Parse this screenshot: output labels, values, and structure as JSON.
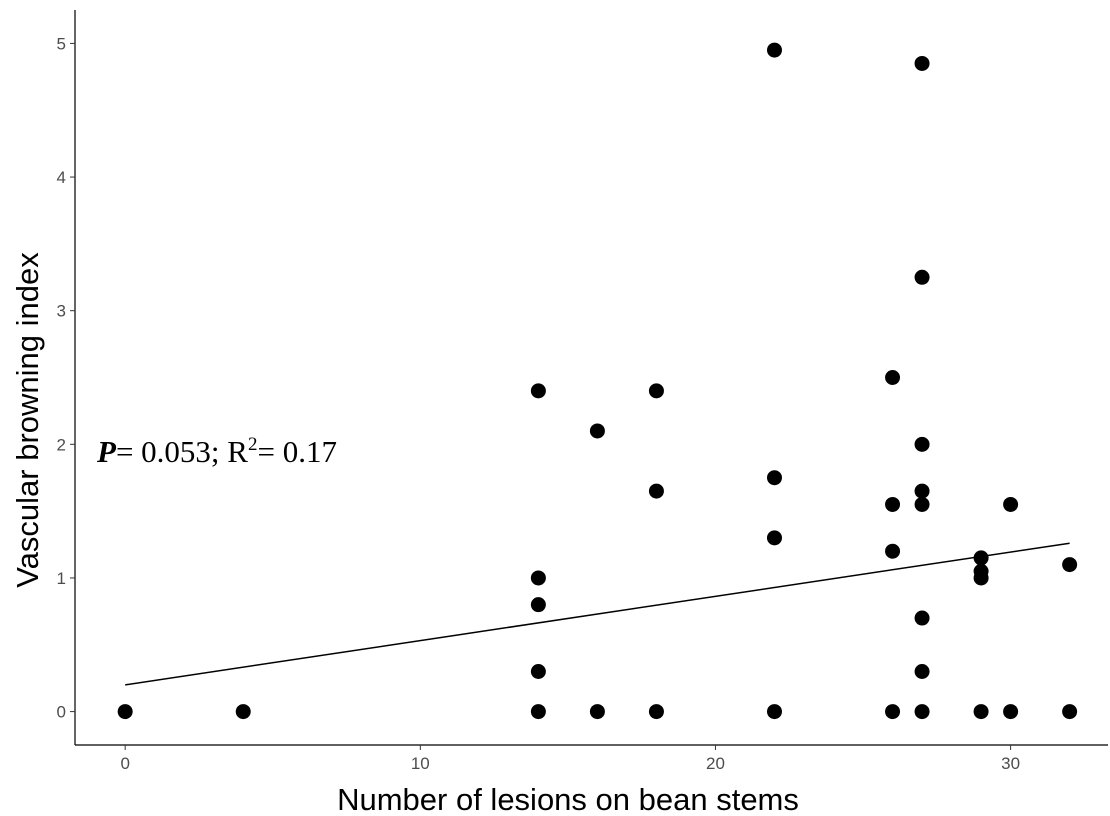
{
  "chart_data": {
    "type": "scatter",
    "xlabel": "Number of lesions on bean stems",
    "ylabel": "Vascular browning index",
    "xlim": [
      -1.7,
      33.3
    ],
    "ylim": [
      -0.25,
      5.25
    ],
    "x_ticks": [
      0,
      10,
      20,
      30
    ],
    "y_ticks": [
      0,
      1,
      2,
      3,
      4,
      5
    ],
    "x_tick_labels": [
      "0",
      "10",
      "20",
      "30"
    ],
    "y_tick_labels": [
      "0",
      "1",
      "2",
      "3",
      "4",
      "5"
    ],
    "grid": false,
    "legend": "none",
    "point_color": "#000000",
    "annotation": {
      "p_symbol": "P",
      "p_rest": "= 0.053; R",
      "r2_sup": "2",
      "r2_rest": "= 0.17"
    },
    "trend_line": {
      "x": [
        0,
        32
      ],
      "y": [
        0.2,
        1.26
      ]
    },
    "points": [
      {
        "x": 0,
        "y": 0
      },
      {
        "x": 4,
        "y": 0
      },
      {
        "x": 14,
        "y": 0
      },
      {
        "x": 14,
        "y": 0.3
      },
      {
        "x": 14,
        "y": 0.8
      },
      {
        "x": 14,
        "y": 1.0
      },
      {
        "x": 14,
        "y": 2.4
      },
      {
        "x": 16,
        "y": 0
      },
      {
        "x": 16,
        "y": 2.1
      },
      {
        "x": 18,
        "y": 0
      },
      {
        "x": 18,
        "y": 1.65
      },
      {
        "x": 18,
        "y": 2.4
      },
      {
        "x": 22,
        "y": 0
      },
      {
        "x": 22,
        "y": 1.3
      },
      {
        "x": 22,
        "y": 1.75
      },
      {
        "x": 22,
        "y": 4.95
      },
      {
        "x": 26,
        "y": 0
      },
      {
        "x": 26,
        "y": 1.2
      },
      {
        "x": 26,
        "y": 1.55
      },
      {
        "x": 26,
        "y": 2.5
      },
      {
        "x": 27,
        "y": 0
      },
      {
        "x": 27,
        "y": 0.3
      },
      {
        "x": 27,
        "y": 0.7
      },
      {
        "x": 27,
        "y": 1.55
      },
      {
        "x": 27,
        "y": 1.65
      },
      {
        "x": 27,
        "y": 2.0
      },
      {
        "x": 27,
        "y": 3.25
      },
      {
        "x": 27,
        "y": 4.85
      },
      {
        "x": 29,
        "y": 0
      },
      {
        "x": 29,
        "y": 1.0
      },
      {
        "x": 29,
        "y": 1.05
      },
      {
        "x": 29,
        "y": 1.15
      },
      {
        "x": 30,
        "y": 0
      },
      {
        "x": 30,
        "y": 1.55
      },
      {
        "x": 32,
        "y": 0
      },
      {
        "x": 32,
        "y": 1.1
      }
    ]
  }
}
